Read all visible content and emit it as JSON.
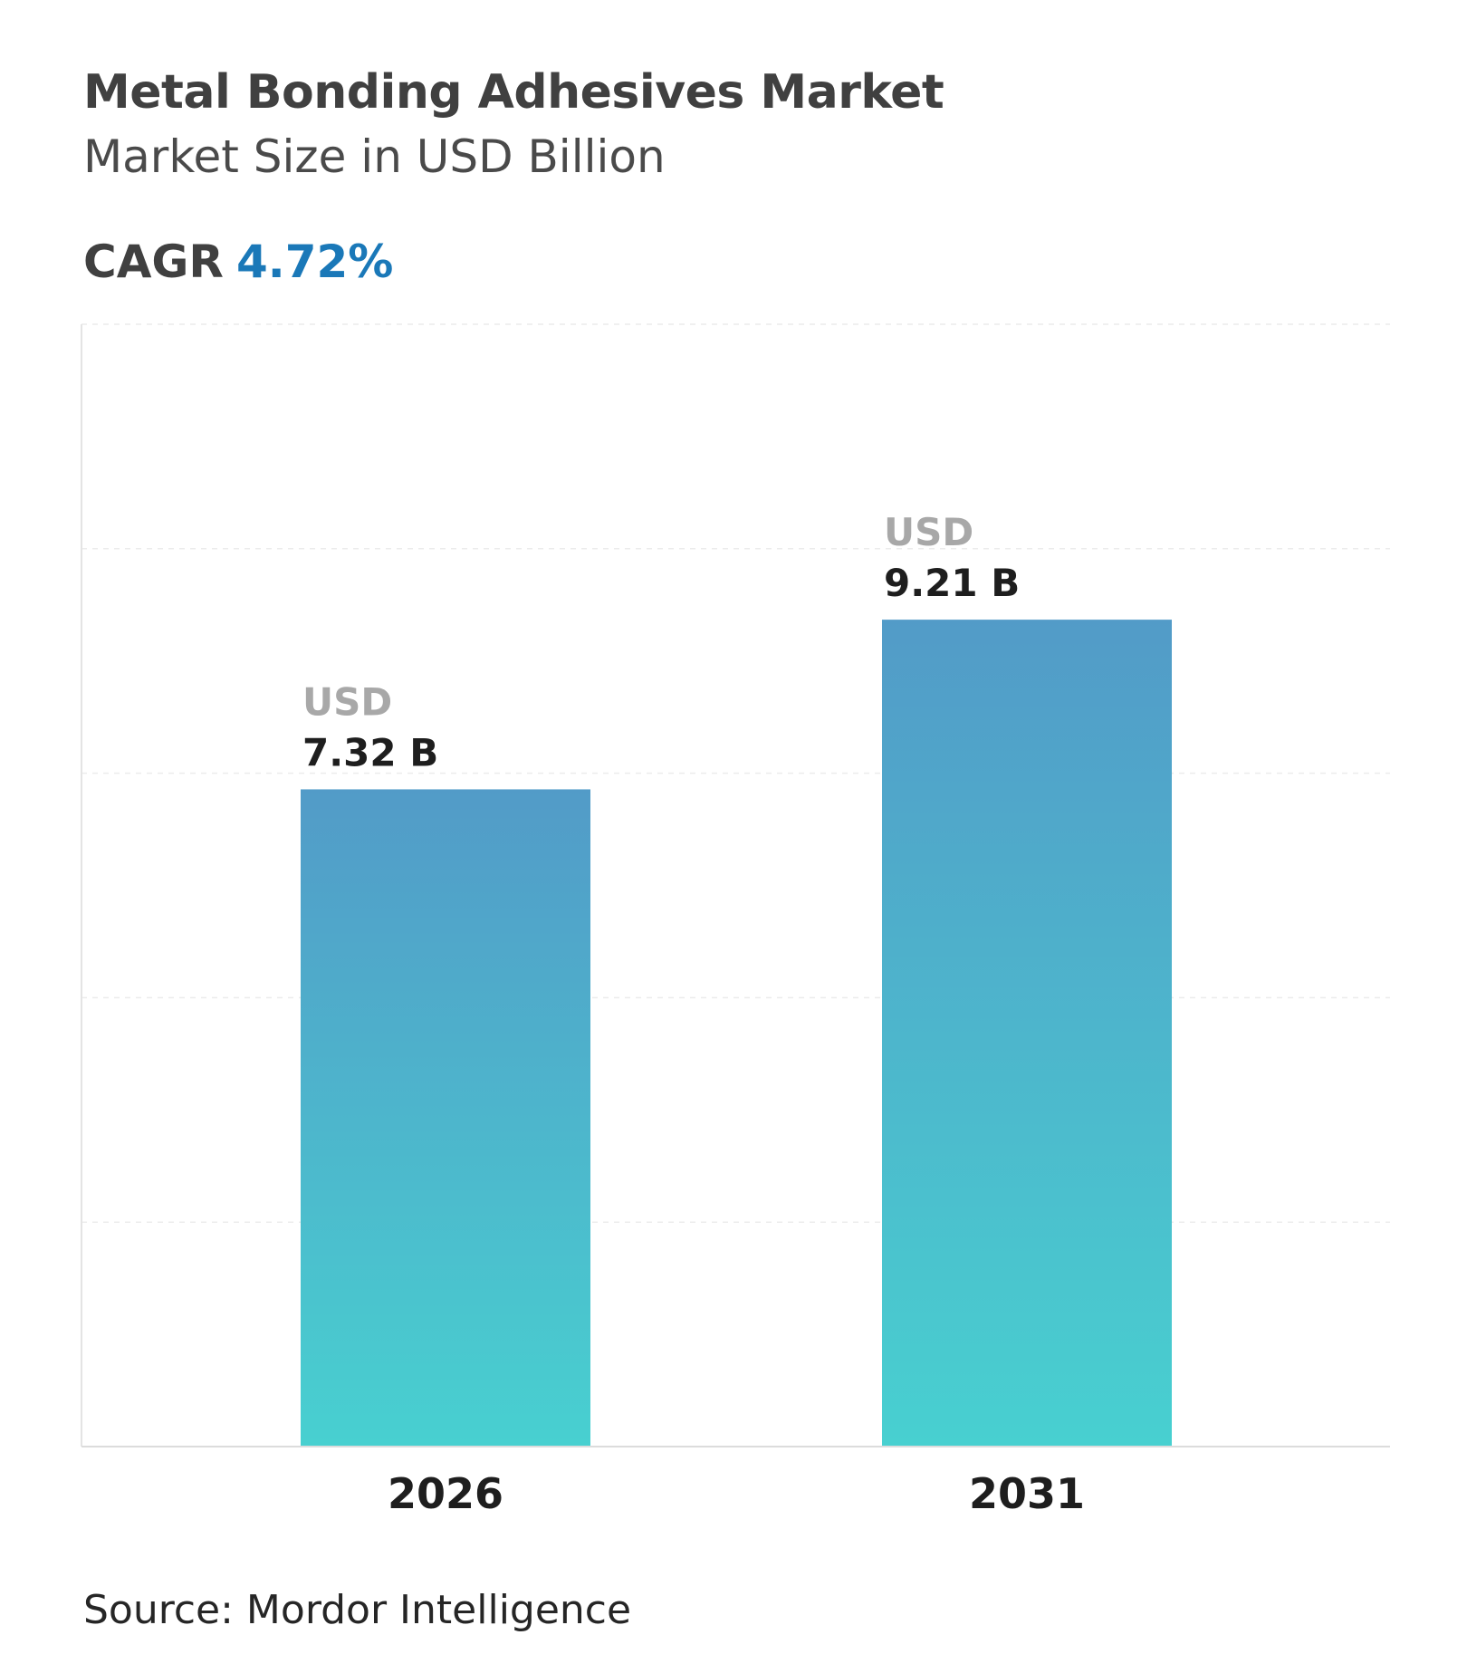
{
  "chart_data": {
    "type": "bar",
    "title": "Metal Bonding Adhesives Market",
    "subtitle": "Market Size in USD Billion",
    "cagr_label": "CAGR",
    "cagr_value": "4.72%",
    "categories": [
      "2026",
      "2031"
    ],
    "values": [
      7.32,
      9.21
    ],
    "value_prefix": "USD",
    "data_labels": [
      "7.32 B",
      "9.21 B"
    ],
    "ylim": [
      0,
      12.5
    ],
    "grid": true,
    "xlabel": "",
    "ylabel": "",
    "source": "Source: Mordor Intelligence",
    "colors": {
      "bar_top": "#529bc8",
      "bar_bottom": "#48d0d0",
      "prefix": "#a8a8a8",
      "label": "#1e1e1e",
      "cagr": "#1a78b8"
    }
  }
}
